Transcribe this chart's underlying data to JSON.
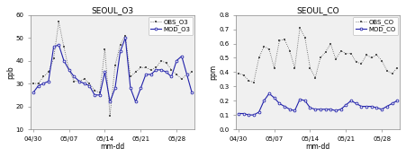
{
  "o3_title": "SEOUL_O3",
  "co_title": "SEOUL_CO",
  "xlabel": "mm-dd",
  "o3_ylabel": "ppb",
  "co_ylabel": "ppm",
  "o3_ylim": [
    10,
    60
  ],
  "co_ylim": [
    0.0,
    0.8
  ],
  "o3_yticks": [
    10,
    20,
    30,
    40,
    50,
    60
  ],
  "co_yticks": [
    0.0,
    0.1,
    0.2,
    0.3,
    0.4,
    0.5,
    0.6,
    0.7,
    0.8
  ],
  "xtick_labels": [
    "04/30",
    "05/07",
    "05/14",
    "05/21",
    "05/28"
  ],
  "xtick_positions": [
    0,
    7,
    14,
    21,
    28
  ],
  "obs_o3": [
    30,
    30,
    33,
    35,
    41,
    57,
    46,
    36,
    31,
    31,
    32,
    30,
    27,
    26,
    45,
    16,
    38,
    47,
    51,
    33,
    35,
    37,
    37,
    36,
    37,
    40,
    39,
    36,
    34,
    32,
    34,
    35
  ],
  "mod_o3": [
    26,
    29,
    30,
    31,
    46,
    47,
    40,
    36,
    33,
    31,
    30,
    29,
    25,
    25,
    35,
    22,
    28,
    44,
    50,
    28,
    22,
    28,
    34,
    34,
    36,
    36,
    35,
    33,
    40,
    42,
    34,
    26
  ],
  "obs_co": [
    0.39,
    0.38,
    0.34,
    0.33,
    0.5,
    0.58,
    0.56,
    0.43,
    0.62,
    0.63,
    0.55,
    0.43,
    0.71,
    0.64,
    0.43,
    0.36,
    0.5,
    0.54,
    0.6,
    0.49,
    0.55,
    0.53,
    0.53,
    0.47,
    0.46,
    0.52,
    0.5,
    0.52,
    0.48,
    0.41,
    0.39,
    0.43
  ],
  "mod_co": [
    0.11,
    0.11,
    0.1,
    0.1,
    0.12,
    0.2,
    0.25,
    0.22,
    0.18,
    0.16,
    0.14,
    0.13,
    0.21,
    0.2,
    0.15,
    0.14,
    0.14,
    0.14,
    0.14,
    0.13,
    0.14,
    0.17,
    0.2,
    0.18,
    0.16,
    0.16,
    0.16,
    0.15,
    0.14,
    0.16,
    0.18,
    0.2
  ],
  "obs_color": "#555555",
  "mod_color": "#2222aa",
  "bg_color": "#f0f0f0",
  "legend_fontsize": 5.0,
  "title_fontsize": 6.5,
  "tick_fontsize": 5.0,
  "label_fontsize": 5.5
}
